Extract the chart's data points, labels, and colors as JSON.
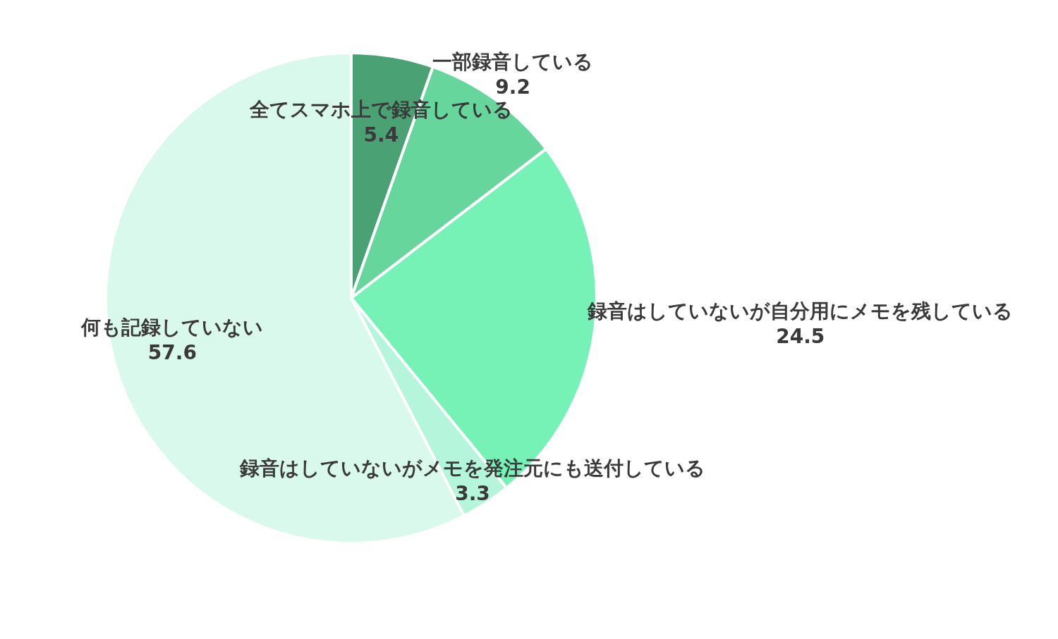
{
  "chart_data": {
    "type": "pie",
    "categories": [
      "全てスマホ上で録音している",
      "一部録音している",
      "録音はしていないが自分用にメモを残している",
      "録音はしていないがメモを発注元にも送付している",
      "何も記録していない"
    ],
    "values": [
      5.4,
      9.2,
      24.5,
      3.3,
      57.6
    ],
    "colors": [
      "#4aa173",
      "#66d69c",
      "#77f2b6",
      "#b5f5dc",
      "#d9f9ec"
    ],
    "data_labels": true,
    "legend": false
  }
}
